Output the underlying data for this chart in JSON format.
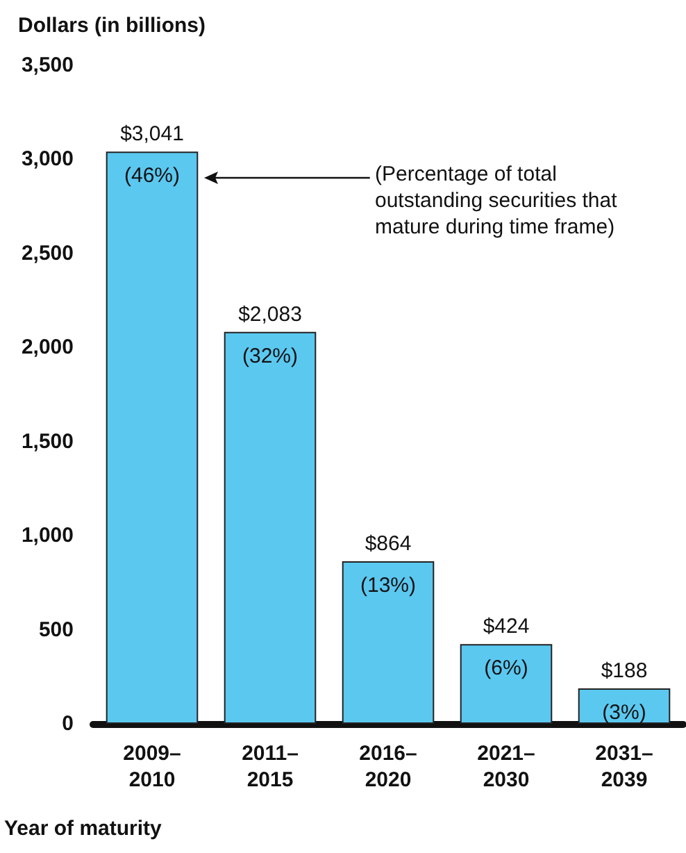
{
  "chart_data": {
    "type": "bar",
    "ylabel": "Dollars (in billions)",
    "xlabel": "Year of maturity",
    "categories": [
      "2009–\n2010",
      "2011–\n2015",
      "2016–\n2020",
      "2021–\n2030",
      "2031–\n2039"
    ],
    "values": [
      3041,
      2083,
      864,
      424,
      188
    ],
    "color": "#5bc8f0",
    "value_labels": [
      "$3,041",
      "$2,083",
      "$864",
      "$424",
      "$188"
    ],
    "ylim": [
      0,
      3500
    ],
    "yticks": [
      0,
      500,
      {
        "value": 1000,
        "label": "1,000"
      },
      {
        "value": 1500,
        "label": "1,500"
      },
      {
        "value": 2000,
        "label": "2,000"
      },
      {
        "value": 2500,
        "label": "2,500"
      },
      {
        "value": 3000,
        "label": "3,000"
      },
      {
        "value": 3500,
        "label": "3,500"
      }
    ],
    "grid": false,
    "annotations": [
      {
        "text": "(46%)",
        "x": "2009–\n2010",
        "y": 3041
      },
      {
        "text": "(32%)",
        "x": "2011–\n2015",
        "y": 2083
      },
      {
        "text": "(13%)",
        "x": "2016–\n2020",
        "y": 864
      },
      {
        "text": "(6%)",
        "x": "2021–\n2030",
        "y": 424
      },
      {
        "text": "(3%)",
        "x": "2031–\n2039",
        "y": 188
      },
      "(Percentage of total outstanding securities that mature during time frame)"
    ]
  }
}
